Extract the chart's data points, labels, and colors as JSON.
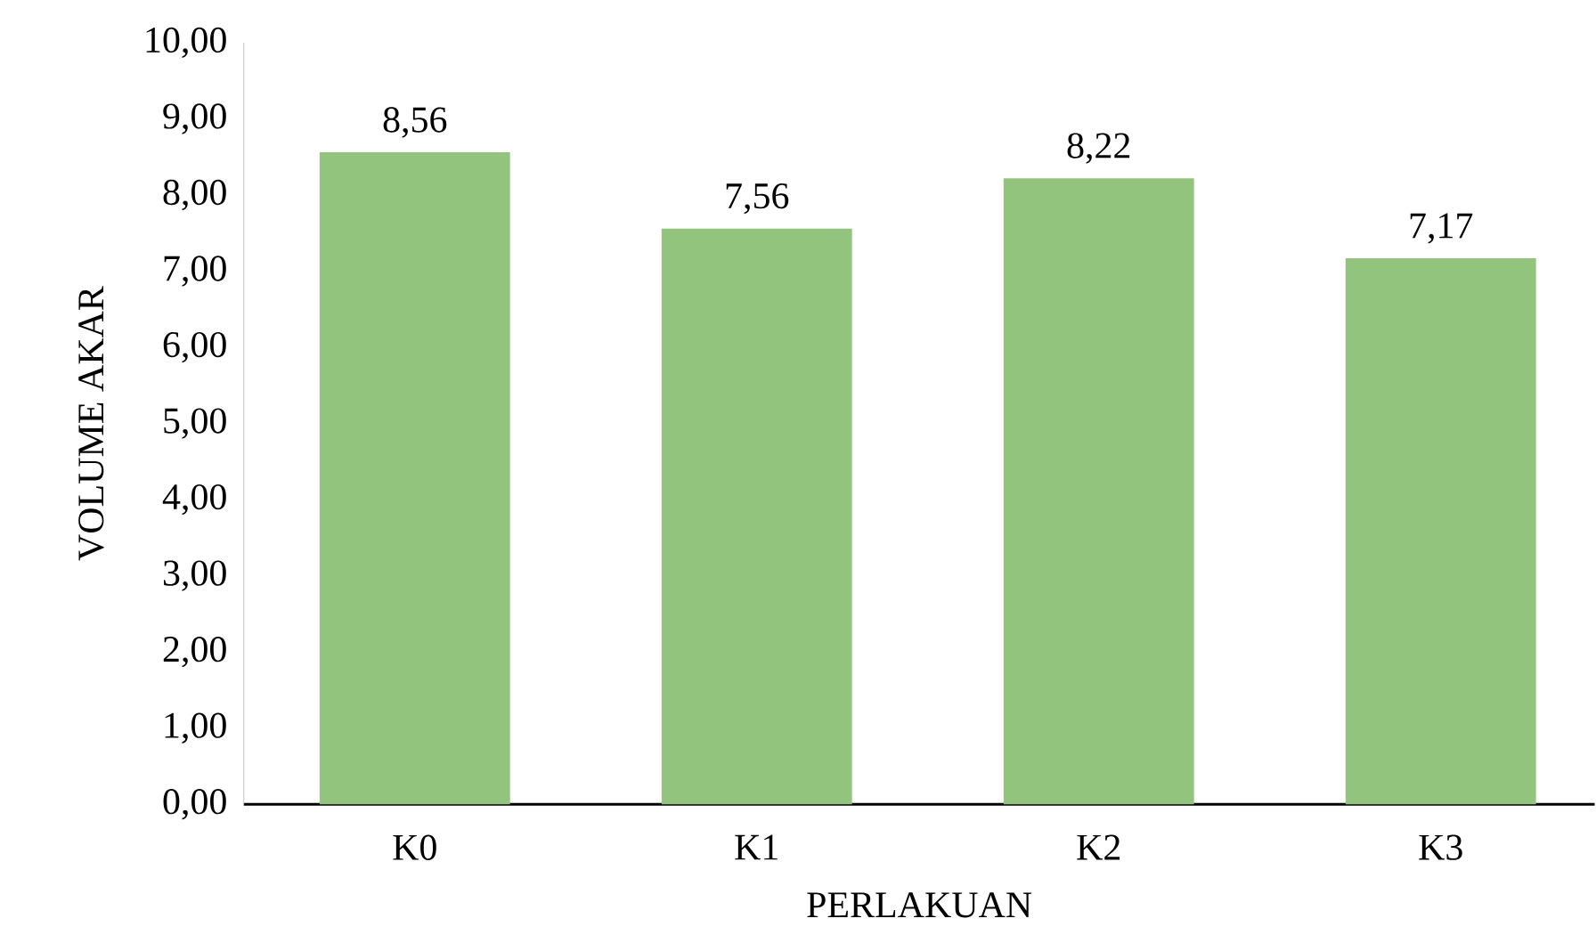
{
  "chart_data": {
    "type": "bar",
    "xlabel": "PERLAKUAN",
    "ylabel": "VOLUME AKAR",
    "categories": [
      "K0",
      "K1",
      "K2",
      "K3"
    ],
    "values": [
      8.56,
      7.56,
      8.22,
      7.17
    ],
    "value_labels": [
      "8,56",
      "7,56",
      "8,22",
      "7,17"
    ],
    "color": "#93c47d",
    "ylim": [
      0,
      10
    ],
    "yticks": [
      {
        "value": 0,
        "label": "0,00"
      },
      {
        "value": 1,
        "label": "1,00"
      },
      {
        "value": 2,
        "label": "2,00"
      },
      {
        "value": 3,
        "label": "3,00"
      },
      {
        "value": 4,
        "label": "4,00"
      },
      {
        "value": 5,
        "label": "5,00"
      },
      {
        "value": 6,
        "label": "6,00"
      },
      {
        "value": 7,
        "label": "7,00"
      },
      {
        "value": 8,
        "label": "8,00"
      },
      {
        "value": 9,
        "label": "9,00"
      },
      {
        "value": 10,
        "label": "10,00"
      }
    ],
    "grid": false
  }
}
